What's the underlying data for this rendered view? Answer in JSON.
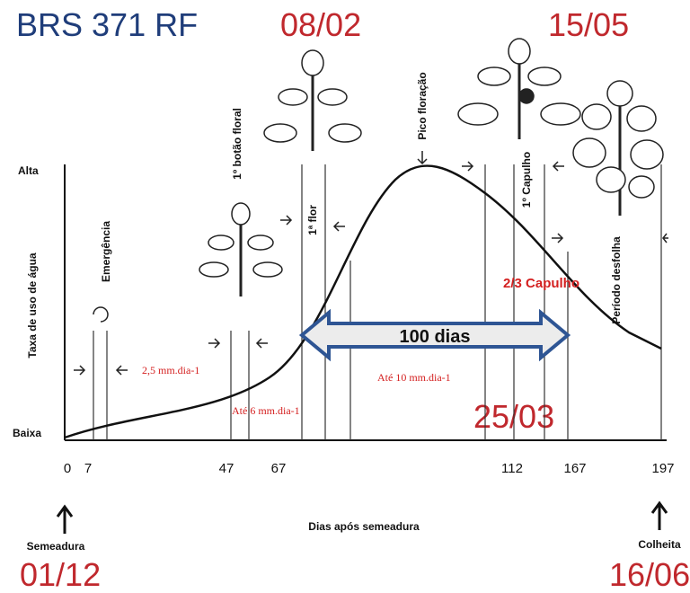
{
  "title": "BRS 371 RF",
  "dates": {
    "flower": "08/02",
    "boll": "15/05",
    "mid": "25/03",
    "sowing": "01/12",
    "harvest": "16/06"
  },
  "y_axis": {
    "label": "Taxa de uso de água",
    "high": "Alta",
    "low": "Baixa"
  },
  "x_axis": {
    "label": "Dias após semeadura",
    "ticks": [
      "0",
      "7",
      "47",
      "67",
      "112",
      "167",
      "197"
    ]
  },
  "stages": {
    "emergence": "Emergência",
    "first_bud": "1º botão floral",
    "first_flower": "1ª flor",
    "peak": "Pico floração",
    "first_boll": "1º Capulho",
    "defoliation": "Período desfolha",
    "two_thirds": "2/3 Capulho"
  },
  "rates": [
    "2,5 mm.dia-1",
    "Até 6 mm.dia-1",
    "Até 10 mm.dia-1"
  ],
  "arrow_label": "100 dias",
  "endpoints": {
    "start": "Semeadura",
    "end": "Colheita"
  }
}
